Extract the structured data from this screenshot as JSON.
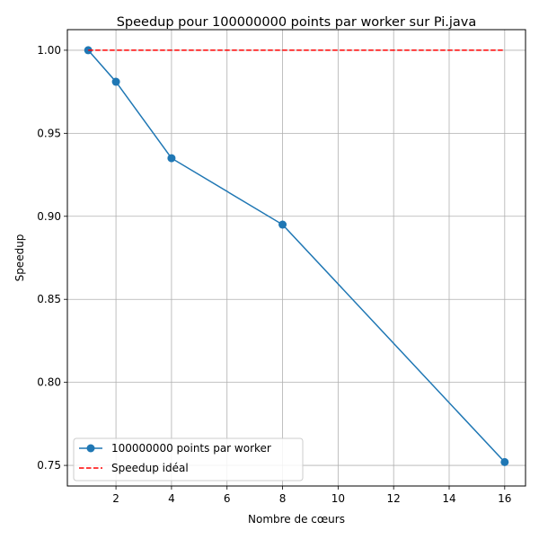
{
  "chart_data": {
    "type": "line",
    "title": "Speedup pour 100000000 points par worker sur Pi.java",
    "xlabel": "Nombre de cœurs",
    "ylabel": "Speedup",
    "xlim": [
      0.25,
      16.75
    ],
    "ylim": [
      0.7376,
      1.0124
    ],
    "xticks": [
      2,
      4,
      6,
      8,
      10,
      12,
      14,
      16
    ],
    "xtick_labels": [
      "2",
      "4",
      "6",
      "8",
      "10",
      "12",
      "14",
      "16"
    ],
    "yticks": [
      0.75,
      0.8,
      0.85,
      0.9,
      0.95,
      1.0
    ],
    "ytick_labels": [
      "0.75",
      "0.80",
      "0.85",
      "0.90",
      "0.95",
      "1.00"
    ],
    "grid": true,
    "legend_position": "lower-left",
    "series": [
      {
        "name": "100000000 points par worker",
        "color": "#1f77b4",
        "style": "solid",
        "marker": "circle",
        "x": [
          1,
          2,
          4,
          8,
          16
        ],
        "values": [
          1.0,
          0.981,
          0.935,
          0.895,
          0.752
        ]
      },
      {
        "name": "Speedup idéal",
        "color": "#ff0000",
        "style": "dashed",
        "marker": "none",
        "x": [
          1,
          16
        ],
        "values": [
          1.0,
          1.0
        ]
      }
    ]
  }
}
